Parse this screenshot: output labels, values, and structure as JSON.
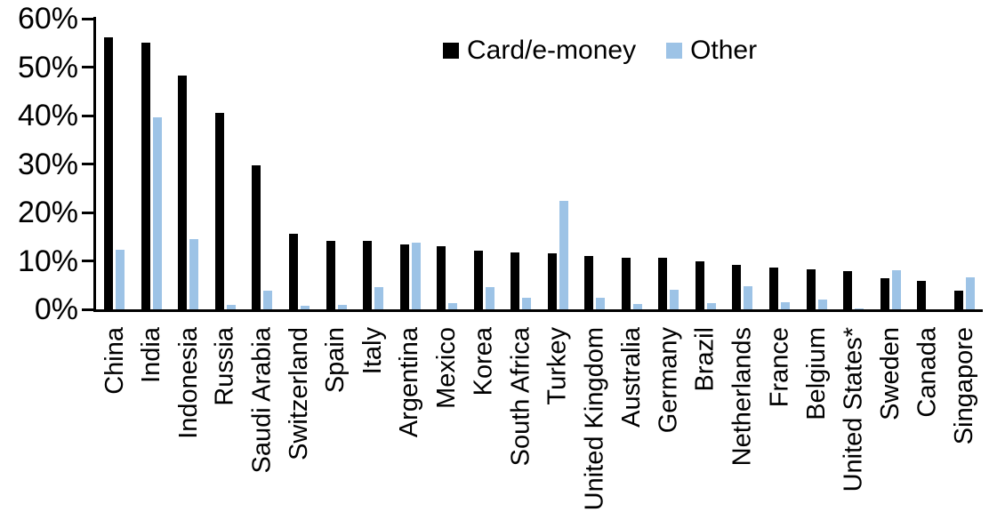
{
  "chart_data": {
    "type": "bar",
    "title": "",
    "xlabel": "",
    "ylabel": "",
    "ylim": [
      0,
      60
    ],
    "grid": false,
    "legend_position": "top-center",
    "y_ticks": [
      "0%",
      "10%",
      "20%",
      "30%",
      "40%",
      "50%",
      "60%"
    ],
    "categories": [
      "China",
      "India",
      "Indonesia",
      "Russia",
      "Saudi Arabia",
      "Switzerland",
      "Spain",
      "Italy",
      "Argentina",
      "Mexico",
      "Korea",
      "South Africa",
      "Turkey",
      "United Kingdom",
      "Australia",
      "Germany",
      "Brazil",
      "Netherlands",
      "France",
      "Belgium",
      "United States*",
      "Sweden",
      "Canada",
      "Singapore"
    ],
    "series": [
      {
        "name": "Card/e-money",
        "color": "#000000",
        "values": [
          56.2,
          55.0,
          48.3,
          40.5,
          29.8,
          15.6,
          14.2,
          14.1,
          13.4,
          13.0,
          12.2,
          11.7,
          11.6,
          11.0,
          10.7,
          10.6,
          10.0,
          9.2,
          8.7,
          8.2,
          7.9,
          6.5,
          5.9,
          3.8
        ]
      },
      {
        "name": "Other",
        "color": "#9DC3E6",
        "values": [
          12.3,
          39.7,
          14.5,
          0.9,
          3.8,
          0.8,
          0.9,
          4.5,
          13.8,
          1.2,
          4.6,
          2.3,
          22.4,
          2.3,
          1.1,
          4.0,
          1.2,
          4.8,
          1.5,
          2.0,
          0.2,
          8.0,
          0.0,
          6.7
        ]
      }
    ],
    "axis_color": "#000000"
  }
}
